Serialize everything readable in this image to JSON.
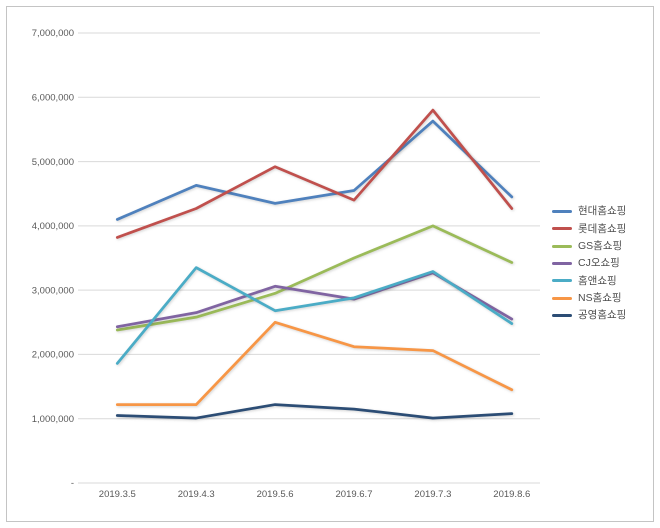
{
  "chart_data": {
    "type": "line",
    "title": "",
    "xlabel": "",
    "ylabel": "",
    "categories": [
      "2019.3.5",
      "2019.4.3",
      "2019.5.6",
      "2019.6.7",
      "2019.7.3",
      "2019.8.6"
    ],
    "series": [
      {
        "name": "현대홈쇼핑",
        "color": "#4F81BD",
        "values": [
          4100000,
          4630000,
          4350000,
          4550000,
          5630000,
          4450000
        ]
      },
      {
        "name": "롯데홈쇼핑",
        "color": "#C0504D",
        "values": [
          3820000,
          4270000,
          4920000,
          4400000,
          5800000,
          4270000
        ]
      },
      {
        "name": "GS홈쇼핑",
        "color": "#9BBB59",
        "values": [
          2380000,
          2580000,
          2950000,
          3500000,
          4000000,
          3430000
        ]
      },
      {
        "name": "CJ오쇼핑",
        "color": "#8064A2",
        "values": [
          2430000,
          2650000,
          3060000,
          2860000,
          3270000,
          2550000
        ]
      },
      {
        "name": "홈앤쇼핑",
        "color": "#4BACC6",
        "values": [
          1860000,
          3350000,
          2680000,
          2880000,
          3290000,
          2480000
        ]
      },
      {
        "name": "NS홈쇼핑",
        "color": "#F79646",
        "values": [
          1220000,
          1220000,
          2500000,
          2120000,
          2060000,
          1450000
        ]
      },
      {
        "name": "공영홈쇼핑",
        "color": "#2C4D75",
        "values": [
          1050000,
          1010000,
          1220000,
          1150000,
          1010000,
          1080000
        ]
      }
    ],
    "ylim": [
      0,
      7000000
    ],
    "ytick_step": 1000000,
    "ytick_labels": [
      "-",
      "1,000,000",
      "2,000,000",
      "3,000,000",
      "4,000,000",
      "5,000,000",
      "6,000,000",
      "7,000,000"
    ],
    "grid": true,
    "legend_position": "right"
  },
  "colors": {
    "gridline": "#d9d9d9",
    "axis_text": "#595959",
    "frame_border": "#c4c4c4",
    "background": "#ffffff"
  }
}
